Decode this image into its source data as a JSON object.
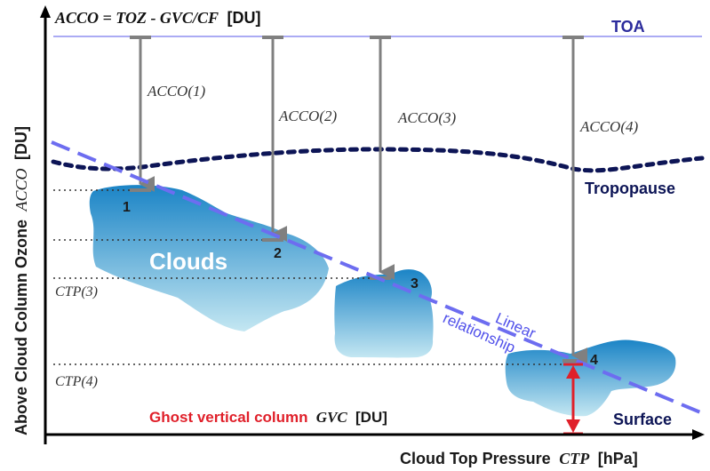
{
  "formula": {
    "lhs": "ACCO = TOZ - GVC/CF",
    "unit": "[DU]"
  },
  "toa_label": "TOA",
  "tropopause_label": "Tropopause",
  "surface_label": "Surface",
  "clouds_label": "Clouds",
  "relationship_label": {
    "line1": "Linear",
    "line2": "relationship"
  },
  "y_axis_title": {
    "text": "Above Cloud Column Ozone",
    "symbol": "ACCO",
    "unit": "[DU]"
  },
  "x_axis_title": {
    "text": "Cloud Top Pressure",
    "symbol": "CTP",
    "unit": "[hPa]"
  },
  "ghost_column_label": {
    "text": "Ghost vertical column",
    "symbol": "GVC",
    "unit": "[DU]"
  },
  "acco_labels": [
    "ACCO(1)",
    "ACCO(2)",
    "ACCO(3)",
    "ACCO(4)"
  ],
  "cloud_numbers": [
    "1",
    "2",
    "3",
    "4"
  ],
  "ctp_labels": [
    "CTP(3)",
    "CTP(4)"
  ],
  "colors": {
    "toa_line": "#8f8ff0",
    "toa_text": "#2b2b9c",
    "tropopause": "#0d1556",
    "dashed_line": "#6d6df0",
    "arrow_gray": "#808080",
    "ghost_red": "#e0202a",
    "cloud_dark": "#1b84c6",
    "cloud_light": "#c4e7f2"
  }
}
